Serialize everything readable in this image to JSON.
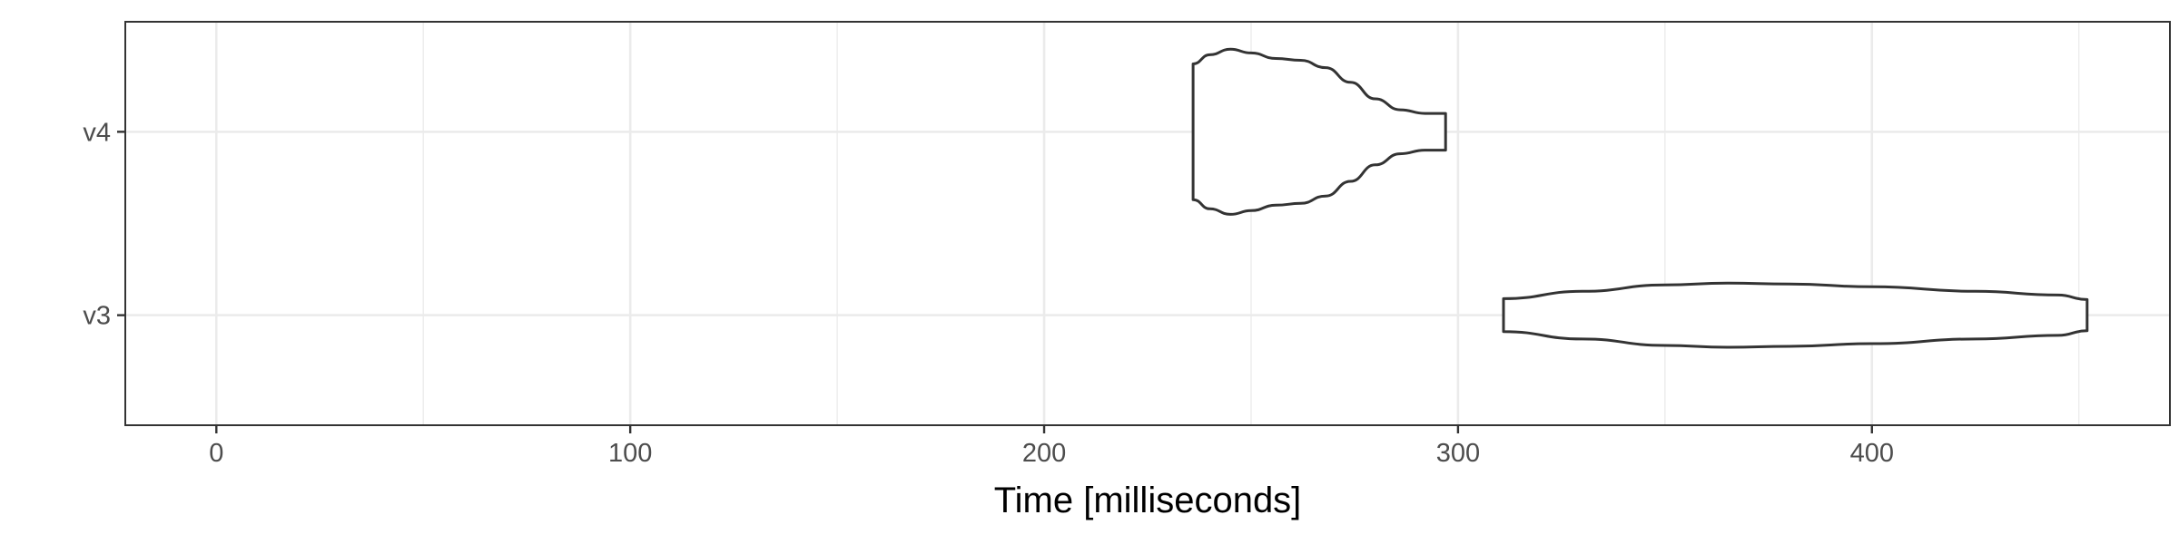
{
  "chart_data": {
    "type": "violin",
    "orientation": "horizontal",
    "xlabel": "Time [milliseconds]",
    "ylabel": "",
    "xlim": [
      -22,
      472
    ],
    "x_ticks": [
      0,
      100,
      200,
      300,
      400
    ],
    "x_minor_ticks": [
      50,
      150,
      250,
      350,
      450
    ],
    "categories": [
      "v3",
      "v4"
    ],
    "grid": true,
    "outline_color": "#333333",
    "grid_color": "#ebebeb",
    "series": [
      {
        "category": "v4",
        "range": [
          236,
          297
        ],
        "profile": [
          {
            "x": 236,
            "w": 0.37
          },
          {
            "x": 240,
            "w": 0.42
          },
          {
            "x": 245,
            "w": 0.45
          },
          {
            "x": 250,
            "w": 0.43
          },
          {
            "x": 256,
            "w": 0.4
          },
          {
            "x": 262,
            "w": 0.39
          },
          {
            "x": 268,
            "w": 0.35
          },
          {
            "x": 274,
            "w": 0.27
          },
          {
            "x": 280,
            "w": 0.18
          },
          {
            "x": 286,
            "w": 0.12
          },
          {
            "x": 292,
            "w": 0.1
          },
          {
            "x": 297,
            "w": 0.1
          }
        ]
      },
      {
        "category": "v3",
        "range": [
          311,
          452
        ],
        "profile": [
          {
            "x": 311,
            "w": 0.09
          },
          {
            "x": 330,
            "w": 0.13
          },
          {
            "x": 350,
            "w": 0.165
          },
          {
            "x": 365,
            "w": 0.175
          },
          {
            "x": 380,
            "w": 0.17
          },
          {
            "x": 400,
            "w": 0.155
          },
          {
            "x": 425,
            "w": 0.13
          },
          {
            "x": 445,
            "w": 0.11
          },
          {
            "x": 452,
            "w": 0.085
          }
        ]
      }
    ]
  }
}
